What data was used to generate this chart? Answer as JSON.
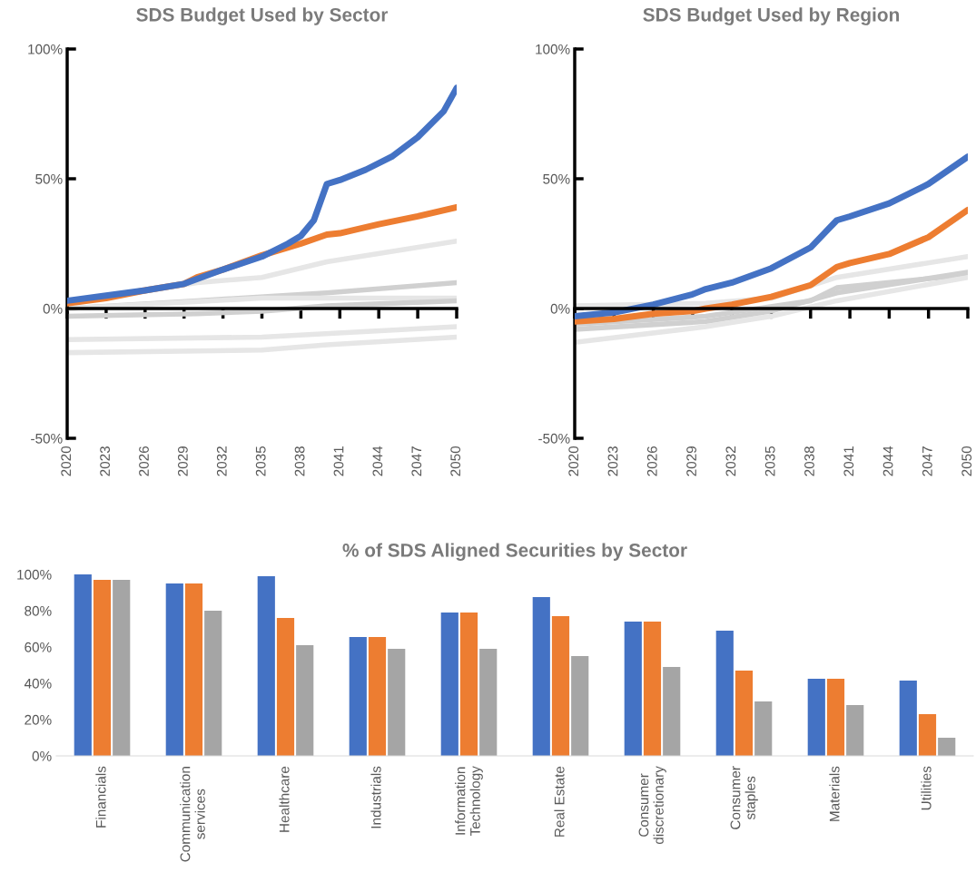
{
  "chart_data": [
    {
      "type": "line",
      "title": "SDS Budget Used by Sector",
      "xlim": [
        2020,
        2050
      ],
      "xticks": [
        2020,
        2023,
        2026,
        2029,
        2032,
        2035,
        2038,
        2041,
        2044,
        2047,
        2050
      ],
      "ylim": [
        -50,
        100
      ],
      "yticks": [
        {
          "value": -50,
          "label": "-50%"
        },
        {
          "value": 0,
          "label": "0%"
        },
        {
          "value": 50,
          "label": "50%"
        },
        {
          "value": 100,
          "label": "100%"
        }
      ],
      "series": [
        {
          "color": "#e6e6e6",
          "x": [
            2020,
            2030,
            2035,
            2040,
            2050
          ],
          "values": [
            2,
            10,
            12,
            18,
            26
          ]
        },
        {
          "color": "#d0d0d0",
          "x": [
            2020,
            2030,
            2040,
            2050
          ],
          "values": [
            0,
            3,
            6,
            10
          ]
        },
        {
          "color": "#e6e6e6",
          "x": [
            2020,
            2035,
            2050
          ],
          "values": [
            0,
            4,
            4
          ]
        },
        {
          "color": "#d0d0d0",
          "x": [
            2020,
            2030,
            2035,
            2040,
            2050
          ],
          "values": [
            -3,
            -2,
            -1,
            1,
            3
          ]
        },
        {
          "color": "#e6e6e6",
          "x": [
            2020,
            2035,
            2050
          ],
          "values": [
            -12,
            -11,
            -7
          ]
        },
        {
          "color": "#e6e6e6",
          "x": [
            2020,
            2035,
            2040,
            2050
          ],
          "values": [
            -17,
            -16,
            -14,
            -11
          ]
        },
        {
          "color": "#ed7d31",
          "x": [
            2020,
            2023,
            2026,
            2029,
            2030,
            2032,
            2035,
            2038,
            2040,
            2041,
            2044,
            2047,
            2050
          ],
          "values": [
            2,
            4,
            7,
            9.5,
            12,
            15,
            20.5,
            25,
            28.5,
            29,
            32.5,
            35.5,
            39
          ]
        },
        {
          "color": "#4472c4",
          "x": [
            2020,
            2023,
            2026,
            2029,
            2032,
            2035,
            2037,
            2038,
            2039,
            2040,
            2041,
            2043,
            2045,
            2047,
            2049,
            2050
          ],
          "values": [
            3,
            5,
            7,
            9.5,
            15,
            20,
            25,
            28,
            34,
            48,
            49.5,
            53.5,
            58.5,
            66,
            76,
            85
          ]
        }
      ]
    },
    {
      "type": "line",
      "title": "SDS Budget Used by Region",
      "xlim": [
        2020,
        2050
      ],
      "xticks": [
        2020,
        2023,
        2026,
        2029,
        2032,
        2035,
        2038,
        2041,
        2044,
        2047,
        2050
      ],
      "ylim": [
        -50,
        100
      ],
      "yticks": [
        {
          "value": -50,
          "label": "-50%"
        },
        {
          "value": 0,
          "label": "0%"
        },
        {
          "value": 50,
          "label": "50%"
        },
        {
          "value": 100,
          "label": "100%"
        }
      ],
      "series": [
        {
          "color": "#e6e6e6",
          "x": [
            2020,
            2030,
            2035,
            2040,
            2050
          ],
          "values": [
            1,
            2,
            4,
            12,
            20
          ]
        },
        {
          "color": "#d0d0d0",
          "x": [
            2020,
            2030,
            2038,
            2040,
            2050
          ],
          "values": [
            -6,
            -3,
            3,
            8,
            13
          ]
        },
        {
          "color": "#e6e6e6",
          "x": [
            2020,
            2030,
            2035,
            2040,
            2050
          ],
          "values": [
            -13,
            -7,
            -3,
            3,
            12
          ]
        },
        {
          "color": "#d0d0d0",
          "x": [
            2020,
            2030,
            2035,
            2040,
            2050
          ],
          "values": [
            -8,
            -5,
            -1,
            6,
            14
          ]
        },
        {
          "color": "#ed7d31",
          "x": [
            2020,
            2023,
            2026,
            2029,
            2030,
            2032,
            2035,
            2038,
            2040,
            2041,
            2044,
            2047,
            2050
          ],
          "values": [
            -5,
            -4,
            -2,
            -1,
            0,
            1.5,
            4.5,
            9,
            16,
            17.5,
            21,
            27.5,
            38
          ]
        },
        {
          "color": "#4472c4",
          "x": [
            2020,
            2023,
            2026,
            2029,
            2030,
            2032,
            2035,
            2038,
            2040,
            2041,
            2044,
            2047,
            2050
          ],
          "values": [
            -3,
            -1.5,
            1.5,
            5.5,
            7.5,
            10,
            15.5,
            23.5,
            34,
            35.5,
            40.5,
            48,
            58.5
          ]
        }
      ]
    },
    {
      "type": "bar",
      "title": "% of SDS Aligned Securities by Sector",
      "categories": [
        "Financials",
        "Communication\nservices",
        "Healthcare",
        "Industrials",
        "Information\nTechnology",
        "Real Estate",
        "Consumer\ndiscretionary",
        "Consumer\nstaples",
        "Materials",
        "Utilities"
      ],
      "ylim": [
        0,
        100
      ],
      "yticks": [
        {
          "value": 0,
          "label": "0%"
        },
        {
          "value": 20,
          "label": "20%"
        },
        {
          "value": 40,
          "label": "40%"
        },
        {
          "value": 60,
          "label": "60%"
        },
        {
          "value": 80,
          "label": "80%"
        },
        {
          "value": 100,
          "label": "100%"
        }
      ],
      "series": [
        {
          "color": "#4472c4",
          "values": [
            100,
            95,
            99,
            65.5,
            79,
            87.5,
            74,
            69,
            42.5,
            41.5
          ]
        },
        {
          "color": "#ed7d31",
          "values": [
            97,
            95,
            76,
            65.5,
            79,
            77,
            74,
            47,
            42.5,
            23
          ]
        },
        {
          "color": "#a5a5a5",
          "values": [
            97,
            80,
            61,
            59,
            59,
            55,
            49,
            30,
            28,
            10
          ]
        }
      ]
    }
  ]
}
